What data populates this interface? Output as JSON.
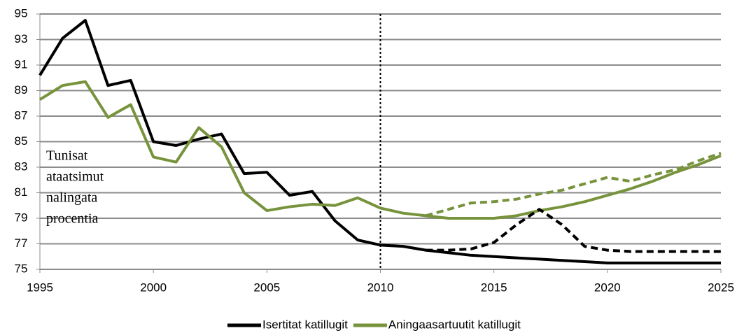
{
  "chart_data": {
    "type": "line",
    "x": [
      1995,
      1996,
      1997,
      1998,
      1999,
      2000,
      2001,
      2002,
      2003,
      2004,
      2005,
      2006,
      2007,
      2008,
      2009,
      2010,
      2011,
      2012,
      2013,
      2014,
      2015,
      2016,
      2017,
      2018,
      2019,
      2020,
      2021,
      2022,
      2023,
      2024,
      2025
    ],
    "series": [
      {
        "name": "Isertitat katillugit",
        "color": "#000000",
        "dash": false,
        "values": [
          90.2,
          93.1,
          94.5,
          89.4,
          89.8,
          85.0,
          84.7,
          85.2,
          85.6,
          82.5,
          82.6,
          80.8,
          81.1,
          78.8,
          77.3,
          76.9,
          76.8,
          76.5,
          76.3,
          76.1,
          76.0,
          75.9,
          75.8,
          75.7,
          75.6,
          75.5,
          75.5,
          75.5,
          75.5,
          75.5,
          75.5
        ]
      },
      {
        "name": "Aningaasartuutit katillugit",
        "color": "#77933c",
        "dash": false,
        "values": [
          88.3,
          89.4,
          89.7,
          86.9,
          87.9,
          83.8,
          83.4,
          86.1,
          84.6,
          81.0,
          79.6,
          79.9,
          80.1,
          80.0,
          80.6,
          79.8,
          79.4,
          79.2,
          79.0,
          79.0,
          79.0,
          79.2,
          79.6,
          79.9,
          80.3,
          80.8,
          81.3,
          81.9,
          82.6,
          83.2,
          83.9
        ]
      },
      {
        "color": "#000000",
        "dash": true,
        "values": [
          null,
          null,
          null,
          null,
          null,
          null,
          null,
          null,
          null,
          null,
          null,
          null,
          null,
          null,
          null,
          null,
          null,
          76.5,
          76.5,
          76.6,
          77.1,
          78.5,
          79.7,
          78.5,
          76.8,
          76.5,
          76.4,
          76.4,
          76.4,
          76.4,
          76.4
        ]
      },
      {
        "color": "#77933c",
        "dash": true,
        "values": [
          null,
          null,
          null,
          null,
          null,
          null,
          null,
          null,
          null,
          null,
          null,
          null,
          null,
          null,
          null,
          null,
          null,
          79.2,
          79.7,
          80.2,
          80.3,
          80.5,
          80.9,
          81.2,
          81.7,
          82.2,
          81.9,
          82.4,
          82.8,
          83.5,
          84.1
        ]
      }
    ],
    "xlim": [
      1995,
      2025
    ],
    "xticks": [
      1995,
      2000,
      2005,
      2010,
      2015,
      2020,
      2025
    ],
    "ylim": [
      75,
      95
    ],
    "yticks": [
      75,
      77,
      79,
      81,
      83,
      85,
      87,
      89,
      91,
      93,
      95
    ],
    "grid": true,
    "vline": 2010,
    "annotation": [
      "Tunisat",
      "ataatsimut",
      "nalingata",
      "procentia"
    ],
    "legend": "bottom"
  }
}
